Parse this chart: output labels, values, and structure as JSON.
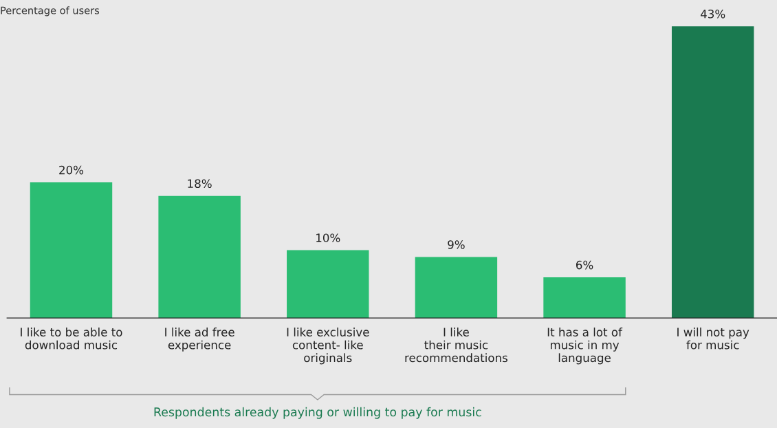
{
  "chart_data": {
    "type": "bar",
    "ylabel": "Percentage of users",
    "categories": [
      "I like to be able to\ndownload music",
      "I like ad free\nexperience",
      "I like exclusive\ncontent- like\noriginals",
      "I like\ntheir music\nrecommendations",
      "It has a lot of\nmusic in my\nlanguage",
      "I will not pay\nfor music"
    ],
    "values": [
      20,
      18,
      10,
      9,
      6,
      43
    ],
    "value_labels": [
      "20%",
      "18%",
      "10%",
      "9%",
      "6%",
      "43%"
    ],
    "colors": [
      "#2bbd73",
      "#2bbd73",
      "#2bbd73",
      "#2bbd73",
      "#2bbd73",
      "#1a7a50"
    ],
    "grid": false,
    "legend": false,
    "annotations": [
      "Respondents already paying or willing to pay for music"
    ]
  }
}
